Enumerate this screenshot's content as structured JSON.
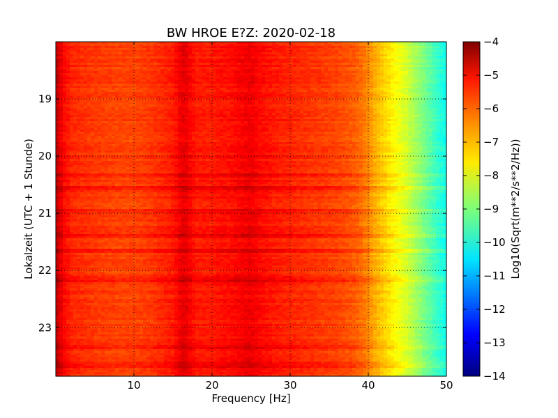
{
  "chart_data": {
    "type": "heatmap",
    "title": "BW HROE E?Z: 2020-02-18",
    "xlabel": "Frequency [Hz]",
    "ylabel": "Lokalzeit (UTC + 1 Stunde)",
    "colorbar_label": "Log10(Sqrt(m**2/s**2/Hz))",
    "colormap": "jet",
    "xlim": [
      0,
      50
    ],
    "ylim": [
      18.0,
      23.85
    ],
    "y_inverted": true,
    "x_ticks": [
      10,
      20,
      30,
      40,
      50
    ],
    "x_tick_labels": [
      "10",
      "20",
      "30",
      "40",
      "50"
    ],
    "y_ticks": [
      19,
      20,
      21,
      22,
      23
    ],
    "y_tick_labels": [
      "19",
      "20",
      "21",
      "22",
      "23"
    ],
    "clim": [
      -14,
      -4
    ],
    "colorbar_ticks": [
      -4,
      -5,
      -6,
      -7,
      -8,
      -9,
      -10,
      -11,
      -12,
      -13,
      -14
    ],
    "colorbar_tick_labels": [
      "−4",
      "−5",
      "−6",
      "−7",
      "−8",
      "−9",
      "−10",
      "−11",
      "−12",
      "−13",
      "−14"
    ],
    "grid": true,
    "frequency_profile": {
      "freq_hz": [
        0,
        0.5,
        1,
        2,
        5,
        8,
        10,
        12,
        14,
        15,
        16,
        16.5,
        17,
        18,
        20,
        21,
        22,
        24,
        25,
        26,
        28,
        30,
        32,
        34,
        36,
        38,
        39,
        40,
        41,
        42,
        43,
        44,
        45,
        46,
        47,
        48,
        49,
        50
      ],
      "log10_amplitude": [
        -4.6,
        -4.9,
        -5.3,
        -5.6,
        -5.8,
        -5.9,
        -5.9,
        -5.8,
        -5.6,
        -5.5,
        -5.1,
        -5.0,
        -5.2,
        -5.5,
        -5.5,
        -5.4,
        -5.4,
        -5.2,
        -5.1,
        -5.3,
        -5.5,
        -5.6,
        -5.7,
        -5.8,
        -5.9,
        -6.1,
        -6.3,
        -6.6,
        -7.0,
        -7.3,
        -7.6,
        -7.9,
        -8.2,
        -8.6,
        -9.0,
        -9.4,
        -9.8,
        -10.1
      ]
    },
    "bright_bands_hour": [
      20.35,
      20.55,
      20.95,
      21.4,
      21.65,
      22.15,
      23.35,
      23.65
    ]
  }
}
